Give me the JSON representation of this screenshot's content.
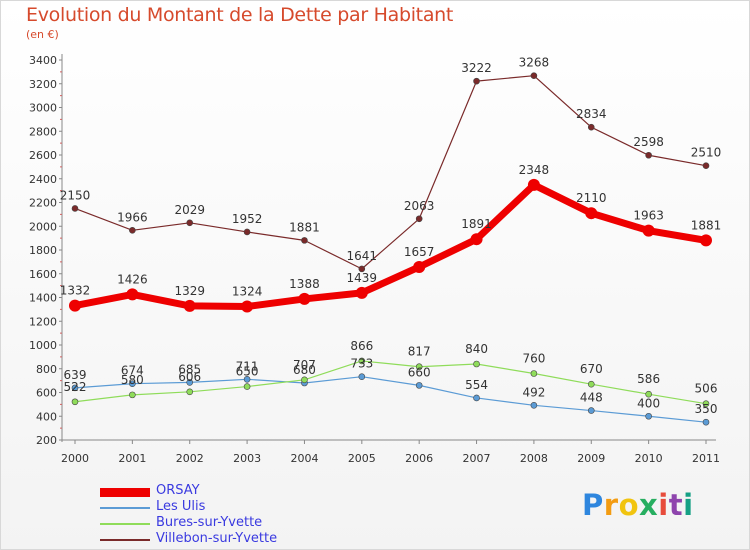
{
  "chart_data": {
    "type": "line",
    "title": "Evolution du Montant de la Dette par Habitant",
    "subtitle": "(en €)",
    "categories": [
      "2000",
      "2001",
      "2002",
      "2003",
      "2004",
      "2005",
      "2006",
      "2007",
      "2008",
      "2009",
      "2010",
      "2011"
    ],
    "ylim": [
      200,
      3400
    ],
    "yticks": [
      200,
      400,
      600,
      800,
      1000,
      1200,
      1400,
      1600,
      1800,
      2000,
      2200,
      2400,
      2600,
      2800,
      3000,
      3200,
      3400
    ],
    "grid": false,
    "legend_position": "bottom-left",
    "series": [
      {
        "name": "ORSAY",
        "color": "#ee0000",
        "values": [
          1332,
          1426,
          1329,
          1324,
          1388,
          1439,
          1657,
          1891,
          2348,
          2110,
          1963,
          1881
        ]
      },
      {
        "name": "Les Ulis",
        "color": "#5b9bd5",
        "values": [
          639,
          674,
          685,
          711,
          680,
          733,
          660,
          554,
          492,
          448,
          400,
          350
        ]
      },
      {
        "name": "Bures-sur-Yvette",
        "color": "#8fdc5a",
        "values": [
          522,
          580,
          606,
          650,
          707,
          866,
          817,
          840,
          760,
          670,
          586,
          506
        ]
      },
      {
        "name": "Villebon-sur-Yvette",
        "color": "#7a2a2a",
        "values": [
          2150,
          1966,
          2029,
          1952,
          1881,
          1641,
          2063,
          3222,
          3268,
          2834,
          2598,
          2510
        ]
      }
    ]
  },
  "logo": {
    "text": "Proxiti",
    "colors": [
      "#2e86de",
      "#f39c12",
      "#f1c40f",
      "#27ae60",
      "#e74c3c",
      "#8e44ad",
      "#16a085"
    ]
  }
}
